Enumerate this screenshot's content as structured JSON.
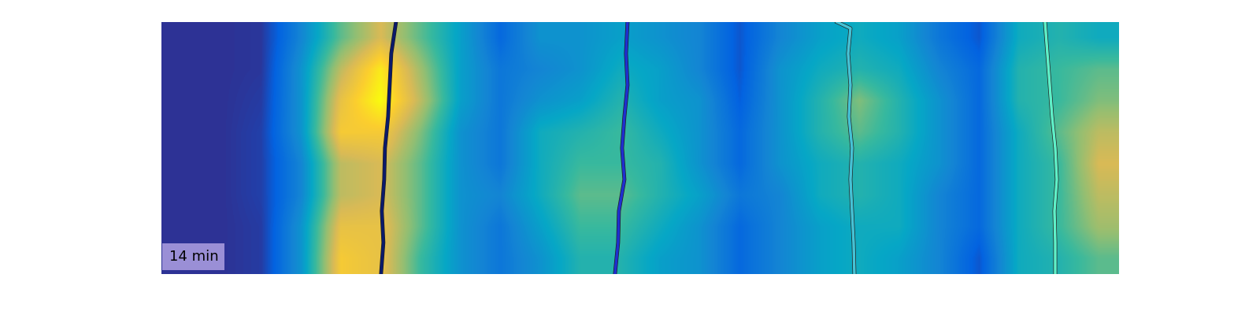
{
  "chart_data": {
    "type": "heatmap",
    "annotation": "14 min",
    "tick_labels": false,
    "xlim": [
      0,
      1215
    ],
    "ylim": [
      320,
      0
    ],
    "zlim": [
      0,
      1
    ],
    "cells": [
      [
        0.02,
        0.02,
        0.03,
        0.25,
        0.55,
        0.75,
        0.55,
        0.35,
        0.15,
        0.3,
        0.3,
        0.35,
        0.3,
        0.25,
        0.1,
        0.25,
        0.35,
        0.4,
        0.35,
        0.2,
        0.1,
        0.4,
        0.45,
        0.4
      ],
      [
        0.02,
        0.02,
        0.03,
        0.3,
        0.7,
        0.95,
        0.65,
        0.35,
        0.2,
        0.25,
        0.3,
        0.4,
        0.35,
        0.25,
        0.1,
        0.3,
        0.4,
        0.45,
        0.4,
        0.25,
        0.15,
        0.45,
        0.5,
        0.55
      ],
      [
        0.02,
        0.02,
        0.04,
        0.3,
        0.8,
        1.0,
        0.7,
        0.35,
        0.2,
        0.3,
        0.35,
        0.45,
        0.35,
        0.3,
        0.12,
        0.3,
        0.45,
        0.6,
        0.45,
        0.3,
        0.15,
        0.45,
        0.5,
        0.6
      ],
      [
        0.02,
        0.02,
        0.05,
        0.3,
        0.85,
        0.85,
        0.6,
        0.3,
        0.2,
        0.4,
        0.45,
        0.5,
        0.4,
        0.3,
        0.15,
        0.3,
        0.45,
        0.55,
        0.45,
        0.3,
        0.15,
        0.4,
        0.55,
        0.7
      ],
      [
        0.02,
        0.02,
        0.05,
        0.25,
        0.7,
        0.75,
        0.55,
        0.3,
        0.2,
        0.4,
        0.5,
        0.5,
        0.45,
        0.3,
        0.15,
        0.3,
        0.4,
        0.45,
        0.4,
        0.3,
        0.15,
        0.4,
        0.5,
        0.75
      ],
      [
        0.02,
        0.02,
        0.05,
        0.25,
        0.7,
        0.75,
        0.55,
        0.3,
        0.25,
        0.4,
        0.55,
        0.55,
        0.45,
        0.35,
        0.2,
        0.25,
        0.4,
        0.45,
        0.4,
        0.25,
        0.15,
        0.4,
        0.5,
        0.7
      ],
      [
        0.02,
        0.02,
        0.04,
        0.3,
        0.8,
        0.8,
        0.55,
        0.3,
        0.2,
        0.35,
        0.5,
        0.5,
        0.4,
        0.3,
        0.15,
        0.25,
        0.35,
        0.4,
        0.4,
        0.25,
        0.15,
        0.4,
        0.5,
        0.65
      ],
      [
        0.02,
        0.02,
        0.04,
        0.3,
        0.85,
        0.8,
        0.5,
        0.3,
        0.2,
        0.3,
        0.45,
        0.45,
        0.35,
        0.3,
        0.15,
        0.25,
        0.35,
        0.4,
        0.35,
        0.25,
        0.1,
        0.4,
        0.45,
        0.55
      ]
    ],
    "series": [
      {
        "color": "#0b1a6b",
        "x": [
          298,
          292,
          290,
          288,
          284,
          283,
          280,
          282,
          279
        ],
        "y": [
          0,
          40,
          80,
          120,
          160,
          200,
          240,
          280,
          320
        ]
      },
      {
        "color": "#1f2fd0",
        "x": [
          592,
          590,
          592,
          588,
          585,
          588,
          581,
          580,
          576
        ],
        "y": [
          0,
          40,
          80,
          120,
          160,
          200,
          240,
          280,
          320
        ]
      },
      {
        "color": "#45c2d5",
        "x": [
          858,
          875,
          872,
          875,
          873,
          877,
          875,
          877,
          879,
          880
        ],
        "y": [
          0,
          8,
          40,
          80,
          120,
          160,
          200,
          240,
          280,
          320
        ]
      },
      {
        "color": "#5ff0c8",
        "x": [
          1122,
          1125,
          1128,
          1131,
          1135,
          1137,
          1134,
          1135,
          1135
        ],
        "y": [
          0,
          40,
          80,
          120,
          160,
          200,
          240,
          280,
          320
        ]
      }
    ]
  }
}
